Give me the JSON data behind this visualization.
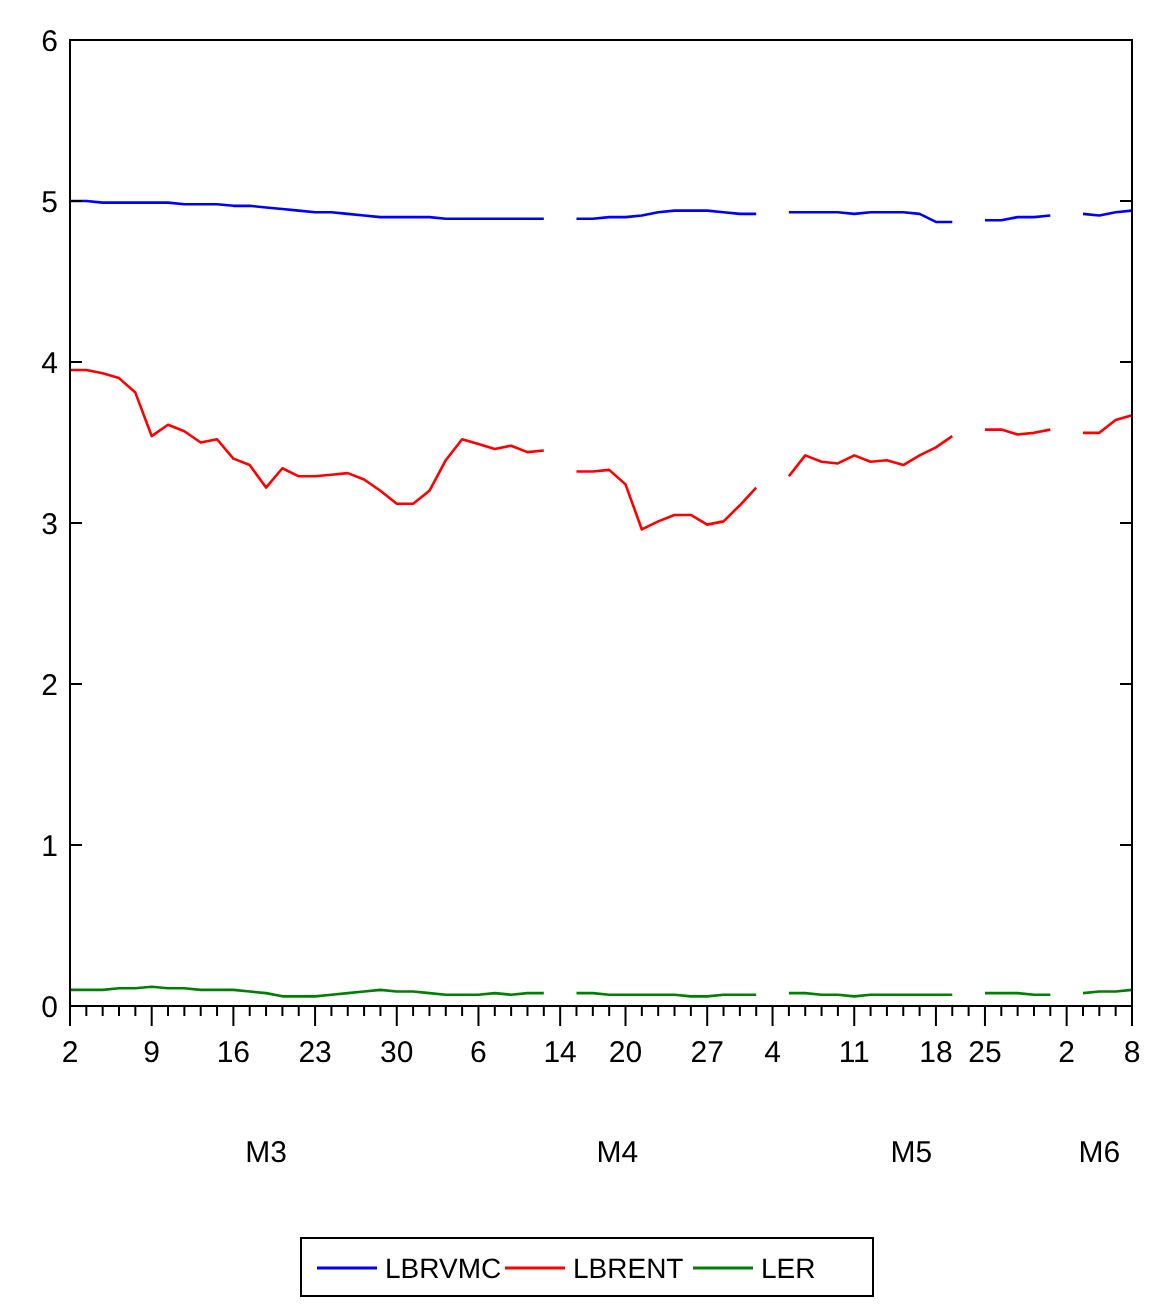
{
  "chart_data": {
    "type": "line",
    "categories": [
      "2",
      null,
      null,
      null,
      null,
      "9",
      null,
      null,
      null,
      null,
      "16",
      null,
      null,
      null,
      null,
      "23",
      null,
      null,
      null,
      null,
      "30",
      null,
      null,
      null,
      null,
      "6",
      null,
      null,
      null,
      null,
      "14",
      null,
      null,
      null,
      "20",
      null,
      null,
      null,
      null,
      "27",
      null,
      null,
      null,
      "4",
      null,
      null,
      null,
      null,
      "11",
      null,
      null,
      null,
      null,
      "18",
      null,
      null,
      "25",
      null,
      null,
      null,
      null,
      "2",
      null,
      null,
      null,
      "8"
    ],
    "series": [
      {
        "name": "LBRVMC",
        "color": "#0000ff",
        "values": [
          5.0,
          5.0,
          4.99,
          4.99,
          4.99,
          4.99,
          4.99,
          4.98,
          4.98,
          4.98,
          4.97,
          4.97,
          4.96,
          4.95,
          4.94,
          4.93,
          4.93,
          4.92,
          4.91,
          4.9,
          4.9,
          4.9,
          4.9,
          4.89,
          4.89,
          4.89,
          4.89,
          4.89,
          4.89,
          4.89,
          null,
          4.89,
          4.89,
          4.9,
          4.9,
          4.91,
          4.93,
          4.94,
          4.94,
          4.94,
          4.93,
          4.92,
          4.92,
          null,
          4.93,
          4.93,
          4.93,
          4.93,
          4.92,
          4.93,
          4.93,
          4.93,
          4.92,
          4.87,
          4.87,
          null,
          4.88,
          4.88,
          4.9,
          4.9,
          4.91,
          null,
          4.92,
          4.91,
          4.93,
          4.94
        ]
      },
      {
        "name": "LBRENT",
        "color": "#ff0000",
        "values": [
          3.95,
          3.95,
          3.93,
          3.9,
          3.81,
          3.54,
          3.61,
          3.57,
          3.5,
          3.52,
          3.4,
          3.36,
          3.22,
          3.34,
          3.29,
          3.29,
          3.3,
          3.31,
          3.27,
          3.2,
          3.12,
          3.12,
          3.2,
          3.39,
          3.52,
          3.49,
          3.46,
          3.48,
          3.44,
          3.45,
          null,
          3.32,
          3.32,
          3.33,
          3.24,
          2.96,
          3.01,
          3.05,
          3.05,
          2.99,
          3.01,
          3.11,
          3.22,
          null,
          3.29,
          3.42,
          3.38,
          3.37,
          3.42,
          3.38,
          3.39,
          3.36,
          3.42,
          3.47,
          3.54,
          null,
          3.58,
          3.58,
          3.55,
          3.56,
          3.58,
          null,
          3.56,
          3.56,
          3.64,
          3.67
        ]
      },
      {
        "name": "LER",
        "color": "#008000",
        "values": [
          0.1,
          0.1,
          0.1,
          0.11,
          0.11,
          0.12,
          0.11,
          0.11,
          0.1,
          0.1,
          0.1,
          0.09,
          0.08,
          0.06,
          0.06,
          0.06,
          0.07,
          0.08,
          0.09,
          0.1,
          0.09,
          0.09,
          0.08,
          0.07,
          0.07,
          0.07,
          0.08,
          0.07,
          0.08,
          0.08,
          null,
          0.08,
          0.08,
          0.07,
          0.07,
          0.07,
          0.07,
          0.07,
          0.06,
          0.06,
          0.07,
          0.07,
          0.07,
          null,
          0.08,
          0.08,
          0.07,
          0.07,
          0.06,
          0.07,
          0.07,
          0.07,
          0.07,
          0.07,
          0.07,
          null,
          0.08,
          0.08,
          0.08,
          0.07,
          0.07,
          null,
          0.08,
          0.09,
          0.09,
          0.1
        ]
      }
    ],
    "ylim": [
      0,
      6
    ],
    "yticks": [
      0,
      1,
      2,
      3,
      4,
      5,
      6
    ],
    "grid": false,
    "legend": "bottom",
    "annotations": [
      "M3",
      "M4",
      "M5",
      "M6"
    ]
  }
}
